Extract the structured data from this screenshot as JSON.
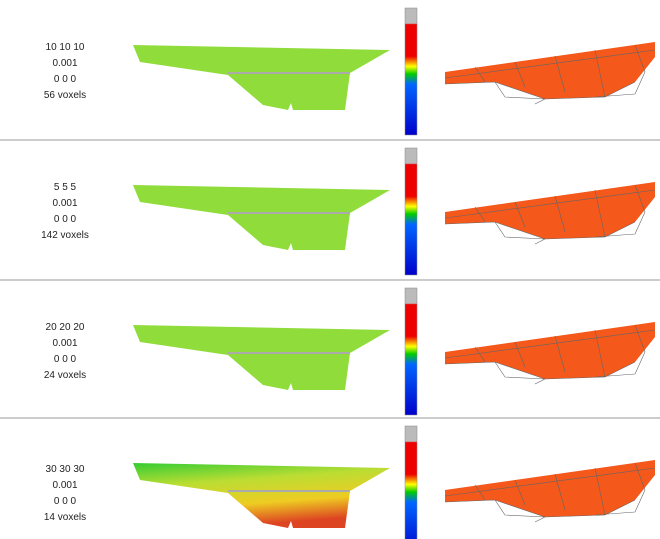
{
  "rows": [
    {
      "lines": [
        "10 10 10",
        "0.001",
        "0 0 0",
        "56 voxels"
      ]
    },
    {
      "lines": [
        "5 5 5",
        "0.001",
        "0 0 0",
        "142 voxels"
      ]
    },
    {
      "lines": [
        "20 20 20",
        "0.001",
        "0 0 0",
        "24 voxels"
      ]
    },
    {
      "lines": [
        "30 30 30",
        "0.001",
        "0 0 0",
        "14 voxels"
      ]
    }
  ]
}
